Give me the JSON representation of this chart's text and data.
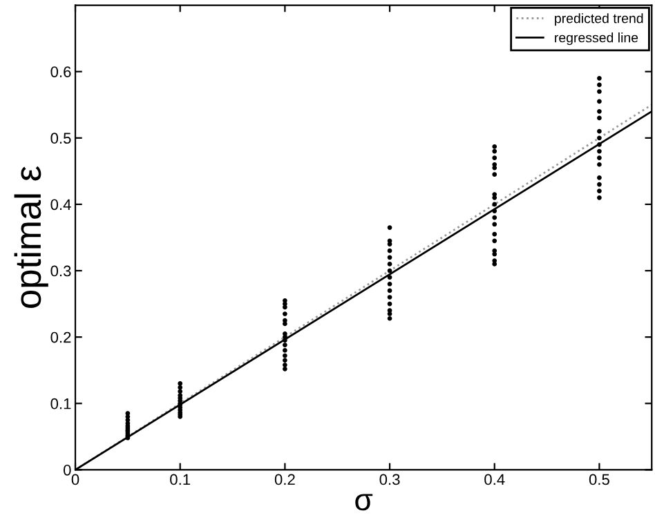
{
  "chart_data": {
    "type": "scatter",
    "xlabel": "σ",
    "ylabel": "optimal ε",
    "xlim": [
      0,
      0.55
    ],
    "ylim": [
      0,
      0.7
    ],
    "xticks": [
      0,
      0.1,
      0.2,
      0.3,
      0.4,
      0.5
    ],
    "yticks": [
      0,
      0.1,
      0.2,
      0.3,
      0.4,
      0.5,
      0.6
    ],
    "grid": false,
    "legend": "top right",
    "series": [
      {
        "color": "#000000",
        "marker": "circle",
        "x": [
          0.05,
          0.05,
          0.05,
          0.05,
          0.05,
          0.05,
          0.05,
          0.05,
          0.05,
          0.05,
          0.05,
          0.05,
          0.1,
          0.1,
          0.1,
          0.1,
          0.1,
          0.1,
          0.1,
          0.1,
          0.1,
          0.1,
          0.1,
          0.1,
          0.1,
          0.2,
          0.2,
          0.2,
          0.2,
          0.2,
          0.2,
          0.2,
          0.2,
          0.2,
          0.2,
          0.2,
          0.2,
          0.2,
          0.2,
          0.2,
          0.3,
          0.3,
          0.3,
          0.3,
          0.3,
          0.3,
          0.3,
          0.3,
          0.3,
          0.3,
          0.3,
          0.3,
          0.3,
          0.3,
          0.3,
          0.4,
          0.4,
          0.4,
          0.4,
          0.4,
          0.4,
          0.4,
          0.4,
          0.4,
          0.4,
          0.4,
          0.4,
          0.4,
          0.4,
          0.4,
          0.4,
          0.4,
          0.4,
          0.5,
          0.5,
          0.5,
          0.5,
          0.5,
          0.5,
          0.5,
          0.5,
          0.5,
          0.5,
          0.5,
          0.5,
          0.5,
          0.5,
          0.5,
          0.5
        ],
        "values": [
          0.048,
          0.05,
          0.052,
          0.055,
          0.058,
          0.06,
          0.063,
          0.066,
          0.07,
          0.075,
          0.08,
          0.085,
          0.08,
          0.083,
          0.086,
          0.09,
          0.094,
          0.098,
          0.1,
          0.104,
          0.108,
          0.112,
          0.118,
          0.124,
          0.13,
          0.152,
          0.158,
          0.165,
          0.172,
          0.18,
          0.188,
          0.195,
          0.2,
          0.205,
          0.22,
          0.225,
          0.235,
          0.245,
          0.25,
          0.255,
          0.228,
          0.235,
          0.24,
          0.25,
          0.26,
          0.27,
          0.28,
          0.29,
          0.3,
          0.31,
          0.32,
          0.33,
          0.34,
          0.345,
          0.365,
          0.31,
          0.315,
          0.325,
          0.33,
          0.345,
          0.355,
          0.37,
          0.38,
          0.39,
          0.4,
          0.41,
          0.415,
          0.445,
          0.455,
          0.46,
          0.47,
          0.48,
          0.487,
          0.41,
          0.42,
          0.43,
          0.44,
          0.46,
          0.47,
          0.48,
          0.49,
          0.5,
          0.51,
          0.53,
          0.54,
          0.555,
          0.57,
          0.58,
          0.59
        ]
      },
      {
        "type": "line",
        "name": "predicted trend",
        "color": "#999999",
        "line_style": "dotted",
        "x": [
          0,
          0.55
        ],
        "values": [
          0,
          0.55
        ]
      },
      {
        "type": "line",
        "name": "regressed line",
        "color": "#000000",
        "line_style": "solid",
        "x": [
          0,
          0.55
        ],
        "values": [
          0,
          0.54
        ]
      }
    ]
  }
}
